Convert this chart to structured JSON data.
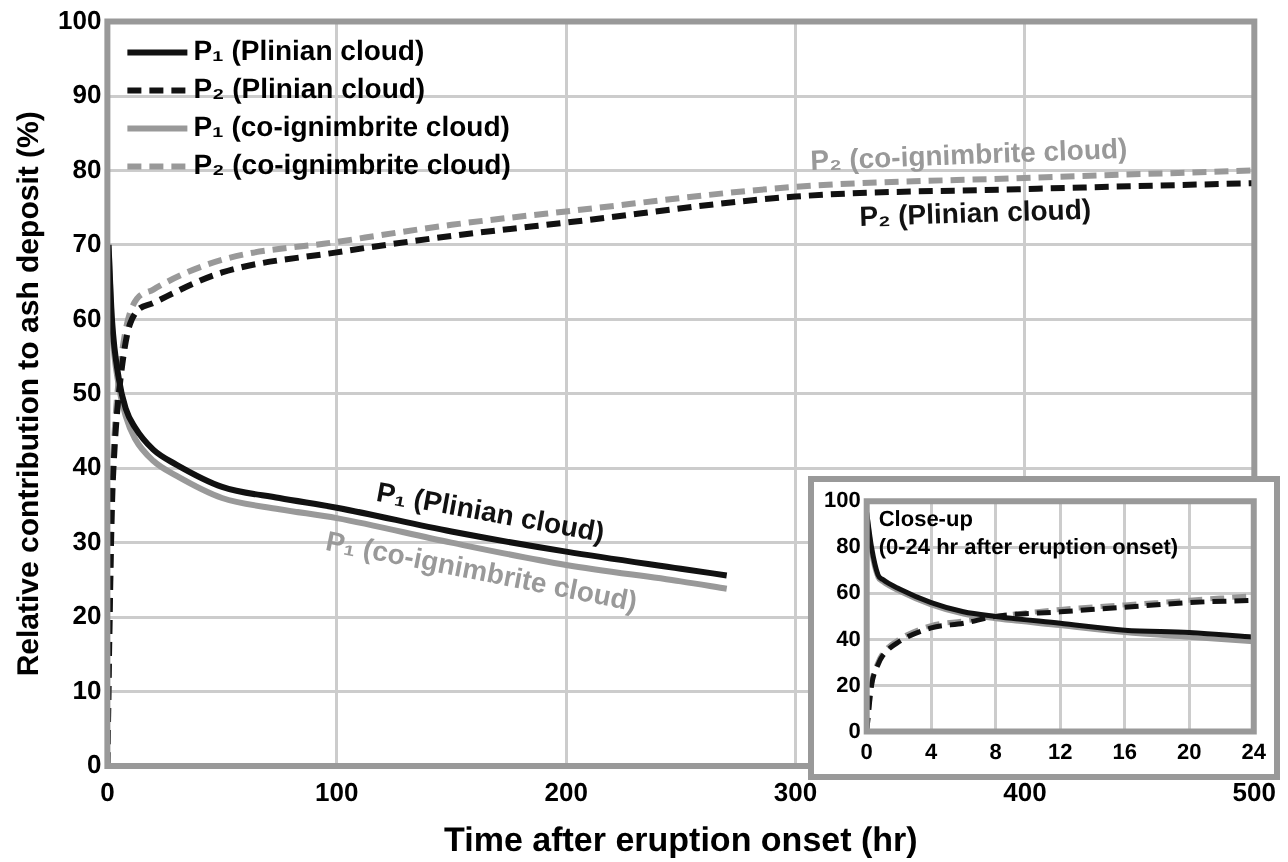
{
  "chart_data": [
    {
      "type": "line",
      "xlabel": "Time after eruption onset (hr)",
      "ylabel": "Relative contribution to ash deposit (%)",
      "xlim": [
        0,
        500
      ],
      "xticks": [
        0,
        100,
        200,
        300,
        400,
        500
      ],
      "ylim": [
        0,
        100
      ],
      "yticks": [
        0,
        10,
        20,
        30,
        40,
        50,
        60,
        70,
        80,
        90,
        100
      ],
      "grid": true,
      "legend": "top left",
      "marker": "none",
      "series": [
        {
          "name": "P₁ (Plinian cloud)",
          "color": "#111111",
          "line_style": "solid",
          "x": [
            0.5,
            2,
            5,
            8,
            12,
            20,
            30,
            50,
            75,
            100,
            150,
            200,
            250,
            270
          ],
          "values": [
            70,
            60,
            52,
            48,
            45.5,
            42.5,
            40.5,
            37.5,
            36,
            34.7,
            31.5,
            28.8,
            26.5,
            25.6
          ]
        },
        {
          "name": "P₂ (Plinian cloud)",
          "color": "#111111",
          "line_style": "dashed",
          "x": [
            0,
            1,
            2,
            3,
            5,
            10,
            20,
            50,
            100,
            150,
            200,
            300,
            400,
            500
          ],
          "values": [
            0,
            20,
            35,
            42,
            50,
            59.5,
            62.2,
            66.3,
            69,
            71.2,
            73,
            76.5,
            77.5,
            78.3
          ]
        },
        {
          "name": "P₁ (co-ignimbrite cloud)",
          "color": "#999999",
          "line_style": "solid",
          "x": [
            0.5,
            2,
            5,
            8,
            12,
            20,
            30,
            50,
            75,
            100,
            150,
            200,
            250,
            270
          ],
          "values": [
            70,
            59,
            51,
            47,
            44,
            41,
            39,
            36,
            34.5,
            33.3,
            30,
            27,
            24.8,
            23.8
          ]
        },
        {
          "name": "P₂ (co-ignimbrite cloud)",
          "color": "#999999",
          "line_style": "dashed",
          "x": [
            0,
            1,
            2,
            3,
            5,
            10,
            20,
            50,
            100,
            150,
            200,
            300,
            400,
            500
          ],
          "values": [
            0,
            22,
            37,
            44,
            52,
            61,
            64,
            68,
            70.4,
            72.7,
            74.5,
            77.8,
            79,
            80
          ]
        }
      ],
      "annotations": [
        {
          "text": "P₂ (co-ignimbrite cloud)",
          "x": 376,
          "y": 78.7
        },
        {
          "text": "P₂ (Plinian cloud)",
          "x": 378,
          "y": 77.3
        },
        {
          "text": "P₁ (Plinian cloud)",
          "x": 165,
          "y": 30.7
        },
        {
          "text": "P₁ (co-ignimbrite cloud)",
          "x": 165,
          "y": 29.1
        }
      ]
    },
    {
      "type": "line",
      "xlim": [
        0,
        24
      ],
      "xticks": [
        0,
        4,
        8,
        12,
        16,
        20,
        24
      ],
      "ylim": [
        0,
        100
      ],
      "yticks": [
        0,
        20,
        40,
        60,
        80,
        100
      ],
      "grid": true,
      "marker": "none",
      "series": [
        {
          "color": "#111111",
          "line_style": "solid",
          "x": [
            0,
            0.3,
            0.7,
            1,
            2,
            4,
            6,
            8,
            12,
            16,
            20,
            24
          ],
          "values": [
            95,
            80,
            68,
            66,
            62,
            56,
            52,
            50,
            47,
            44,
            43,
            41
          ]
        },
        {
          "color": "#111111",
          "line_style": "dashed",
          "x": [
            0,
            0.3,
            0.7,
            1,
            2,
            4,
            6,
            8,
            12,
            16,
            20,
            24
          ],
          "values": [
            0,
            20,
            29,
            33,
            39,
            45,
            47,
            50,
            52,
            54,
            56,
            57
          ]
        },
        {
          "color": "#999999",
          "line_style": "solid",
          "x": [
            0,
            0.3,
            0.7,
            1,
            2,
            4,
            6,
            8,
            12,
            16,
            20,
            24
          ],
          "values": [
            95,
            78,
            67,
            65,
            61,
            55,
            51,
            49,
            46,
            43,
            41,
            39
          ]
        },
        {
          "color": "#999999",
          "line_style": "dashed",
          "x": [
            0,
            0.3,
            0.7,
            1,
            2,
            4,
            6,
            8,
            12,
            16,
            20,
            24
          ],
          "values": [
            0,
            21,
            30,
            34,
            40,
            46,
            48,
            50,
            53,
            55,
            57,
            59
          ]
        }
      ],
      "annotations": [
        "Close-up",
        "(0-24 hr after eruption onset)"
      ]
    }
  ]
}
